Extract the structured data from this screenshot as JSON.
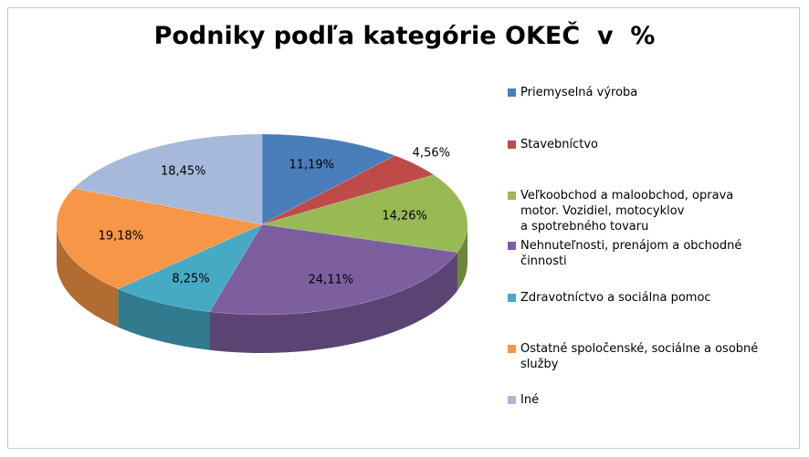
{
  "chart_data": {
    "type": "pie3d",
    "title": "Podniky podľa kategórie OKEČ  v  %",
    "categories": [
      "Priemyselná výroba",
      "Stavebníctvo",
      "Veľkoobchod a maloobchod, oprava\nmotor. Vozidiel, motocyklov\na spotrebného tovaru",
      "Nehnuteľnosti, prenájom a obchodné\nčinnosti",
      "Zdravotníctvo a sociálna pomoc",
      "Ostatné spoločenské, sociálne a osobné\nslužby",
      "Iné"
    ],
    "values": [
      11.19,
      4.56,
      14.26,
      24.11,
      8.25,
      19.18,
      18.45
    ],
    "value_labels": [
      "11,19%",
      "4,56%",
      "14,26%",
      "24,11%",
      "8,25%",
      "19,18%",
      "18,45%"
    ],
    "colors": [
      "#4a7ebb",
      "#be4b48",
      "#98b954",
      "#7d5fa0",
      "#46aac5",
      "#f79646",
      "#a6b9db"
    ],
    "legend": "right"
  }
}
